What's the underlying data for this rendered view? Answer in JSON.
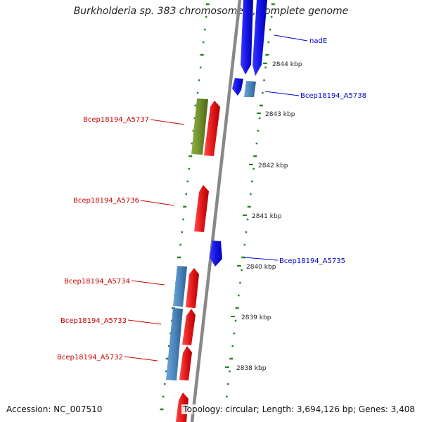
{
  "title": "Burkholderia sp. 383 chromosome 1, complete genome",
  "accession_text": "Accession: NC_007510",
  "summary_text": "Topology: circular; Length: 3,694,126 bp; Genes: 3,408",
  "colors": {
    "forward_cds": "#e31a1c",
    "reverse_cds": "#1414e6",
    "feature_steelblue": "#4a86bd",
    "feature_olive": "#6f8f2a",
    "backbone": "#888888",
    "tick_green": "#1b8a1b",
    "label_red": "#cc0000",
    "label_blue": "#0000cc"
  },
  "scale_ticks": [
    {
      "label": "2844 kbp"
    },
    {
      "label": "2843 kbp"
    },
    {
      "label": "2842 kbp"
    },
    {
      "label": "2841 kbp"
    },
    {
      "label": "2840 kbp"
    },
    {
      "label": "2839 kbp"
    },
    {
      "label": "2838 kbp"
    }
  ],
  "gene_labels": [
    {
      "text": "nadE",
      "strand": "reverse"
    },
    {
      "text": "Bcep18194_A5738",
      "strand": "reverse"
    },
    {
      "text": "Bcep18194_A5737",
      "strand": "forward"
    },
    {
      "text": "Bcep18194_A5736",
      "strand": "forward"
    },
    {
      "text": "Bcep18194_A5735",
      "strand": "reverse"
    },
    {
      "text": "Bcep18194_A5734",
      "strand": "forward"
    },
    {
      "text": "Bcep18194_A5733",
      "strand": "forward"
    },
    {
      "text": "Bcep18194_A5732",
      "strand": "forward"
    }
  ]
}
